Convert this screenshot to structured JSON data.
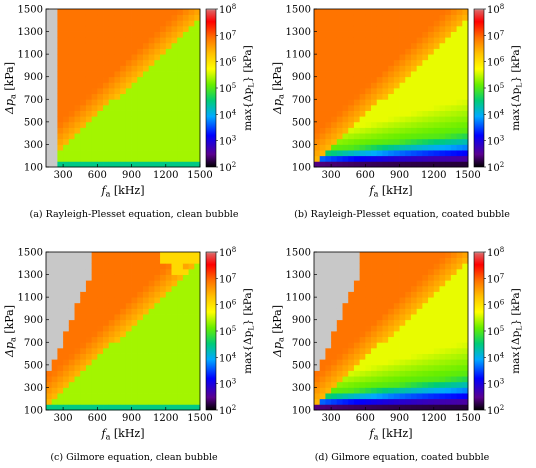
{
  "chart_data": [
    {
      "type": "heatmap",
      "model": "rayleigh_clean",
      "caption": "(a) Rayleigh-Plesset equation, clean bubble",
      "x_label": "f_a [kHz]",
      "y_label": "Δp_a [kPa]",
      "colorbar_label": "max{Δp_L} [kPa]",
      "x_ticks": [
        300,
        600,
        900,
        1200,
        1500
      ],
      "y_ticks": [
        100,
        300,
        500,
        700,
        900,
        1100,
        1300,
        1500
      ],
      "xlim": [
        150,
        1500
      ],
      "ylim": [
        100,
        1500
      ],
      "colorbar_range_log10": [
        2,
        8
      ],
      "colorbar_tick_exponents": [
        2,
        3,
        4,
        5,
        6,
        7,
        8
      ],
      "gray_region_note": "no data / above colour scale"
    },
    {
      "type": "heatmap",
      "model": "rayleigh_coated",
      "caption": "(b) Rayleigh-Plesset equation, coated bubble",
      "x_label": "f_a [kHz]",
      "y_label": "Δp_a [kPa]",
      "colorbar_label": "max{Δp_L} [kPa]",
      "x_ticks": [
        300,
        600,
        900,
        1200,
        1500
      ],
      "y_ticks": [
        100,
        300,
        500,
        700,
        900,
        1100,
        1300,
        1500
      ],
      "xlim": [
        150,
        1500
      ],
      "ylim": [
        100,
        1500
      ],
      "colorbar_range_log10": [
        2,
        8
      ],
      "colorbar_tick_exponents": [
        2,
        3,
        4,
        5,
        6,
        7,
        8
      ]
    },
    {
      "type": "heatmap",
      "model": "gilmore_clean",
      "caption": "(c) Gilmore equation, clean bubble",
      "x_label": "f_a [kHz]",
      "y_label": "Δp_a [kPa]",
      "colorbar_label": "max{Δp_L} [kPa]",
      "x_ticks": [
        300,
        600,
        900,
        1200,
        1500
      ],
      "y_ticks": [
        100,
        300,
        500,
        700,
        900,
        1100,
        1300,
        1500
      ],
      "xlim": [
        150,
        1500
      ],
      "ylim": [
        100,
        1500
      ],
      "colorbar_range_log10": [
        2,
        8
      ],
      "colorbar_tick_exponents": [
        2,
        3,
        4,
        5,
        6,
        7,
        8
      ]
    },
    {
      "type": "heatmap",
      "model": "gilmore_coated",
      "caption": "(d) Gilmore equation, coated bubble",
      "x_label": "f_a [kHz]",
      "y_label": "Δp_a [kPa]",
      "colorbar_label": "max{Δp_L} [kPa]",
      "x_ticks": [
        300,
        600,
        900,
        1200,
        1500
      ],
      "y_ticks": [
        100,
        300,
        500,
        700,
        900,
        1100,
        1300,
        1500
      ],
      "xlim": [
        150,
        1500
      ],
      "ylim": [
        100,
        1500
      ],
      "colorbar_range_log10": [
        2,
        8
      ],
      "colorbar_tick_exponents": [
        2,
        3,
        4,
        5,
        6,
        7,
        8
      ]
    }
  ],
  "labels": {
    "tick_base": "10",
    "x_main": "f",
    "x_sub": "a",
    "x_unit": " [kHz]",
    "y_main": "Δp",
    "y_sub": "a",
    "y_unit": " [kPa]",
    "cb_pre": "max{Δp",
    "cb_sub": "L",
    "cb_post": "} [kPa]"
  },
  "colors": {
    "gray": "#c8c8c8",
    "colormap": [
      "#000000",
      "#5a008f",
      "#0000ff",
      "#00aaff",
      "#00cc77",
      "#66ee00",
      "#ffff00",
      "#ffc000",
      "#ff7000",
      "#ff0000",
      "#c8c8c8"
    ]
  }
}
